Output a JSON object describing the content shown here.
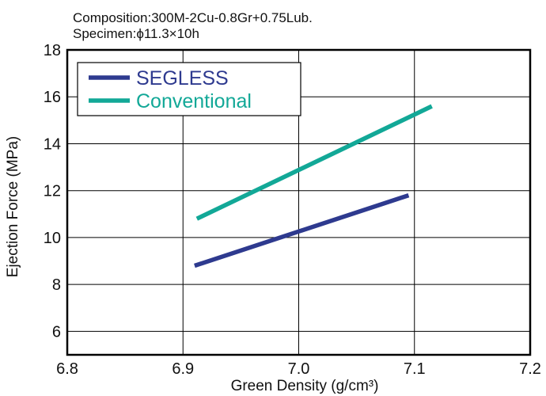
{
  "annotations": {
    "composition": "Composition:300M-2Cu-0.8Gr+0.75Lub.",
    "specimen": "Specimen:ϕ11.3×10h"
  },
  "chart_data": {
    "type": "line",
    "xlabel": "Green Density (g/cm³)",
    "ylabel": "Ejection Force (MPa)",
    "xlim": [
      6.8,
      7.2
    ],
    "ylim": [
      5,
      18
    ],
    "x_ticks": [
      "6.8",
      "6.9",
      "7.0",
      "7.1",
      "7.2"
    ],
    "y_ticks": [
      "6",
      "8",
      "10",
      "12",
      "14",
      "16",
      "18"
    ],
    "grid": true,
    "legend_position": "top-left",
    "series": [
      {
        "name": "SEGLESS",
        "color": "#2e3a8f",
        "x": [
          6.91,
          7.095
        ],
        "y": [
          8.8,
          11.8
        ]
      },
      {
        "name": "Conventional",
        "color": "#12a897",
        "x": [
          6.912,
          7.115
        ],
        "y": [
          10.8,
          15.6
        ]
      }
    ]
  }
}
